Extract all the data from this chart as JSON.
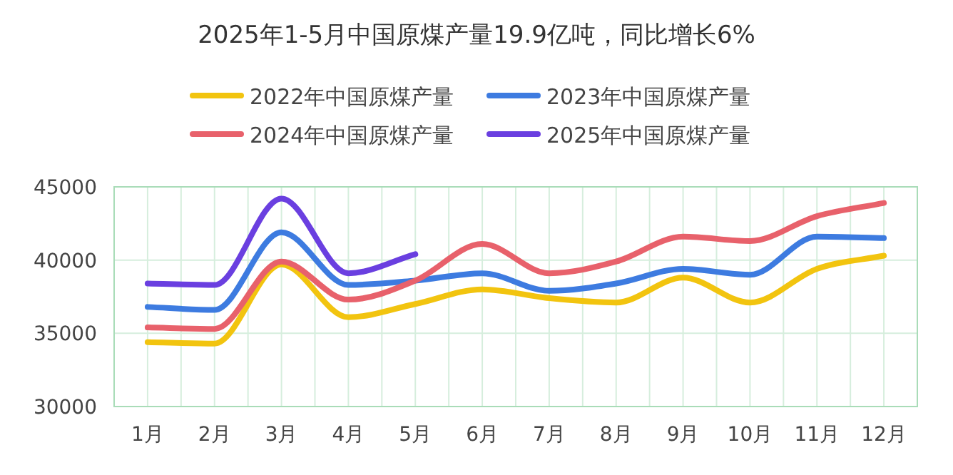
{
  "chart_data": {
    "type": "line",
    "title": "2025年1-5月中国原煤产量19.9亿吨，同比增长6%",
    "categories": [
      "1月",
      "2月",
      "3月",
      "4月",
      "5月",
      "6月",
      "7月",
      "8月",
      "9月",
      "10月",
      "11月",
      "12月"
    ],
    "series": [
      {
        "name": "2022年中国原煤产量",
        "color": "#f2c40f",
        "values": [
          34400,
          34300,
          39700,
          36100,
          37000,
          38000,
          37400,
          37100,
          38800,
          37100,
          39400,
          40300
        ]
      },
      {
        "name": "2023年中国原煤产量",
        "color": "#3d7be0",
        "values": [
          36800,
          36600,
          41900,
          38300,
          38600,
          39100,
          37900,
          38400,
          39400,
          39000,
          41600,
          41500
        ]
      },
      {
        "name": "2024年中国原煤产量",
        "color": "#e8616b",
        "values": [
          35400,
          35300,
          39900,
          37300,
          38600,
          41100,
          39100,
          39900,
          41600,
          41300,
          43000,
          43900
        ]
      },
      {
        "name": "2025年中国原煤产量",
        "color": "#6a3fe0",
        "values": [
          38400,
          38300,
          44200,
          39100,
          40400,
          null,
          null,
          null,
          null,
          null,
          null,
          null
        ]
      }
    ],
    "ylim": [
      30000,
      45000
    ],
    "yticks": [
      30000,
      35000,
      40000,
      45000
    ],
    "grid": true,
    "legend": "top",
    "line_style": "solid"
  }
}
